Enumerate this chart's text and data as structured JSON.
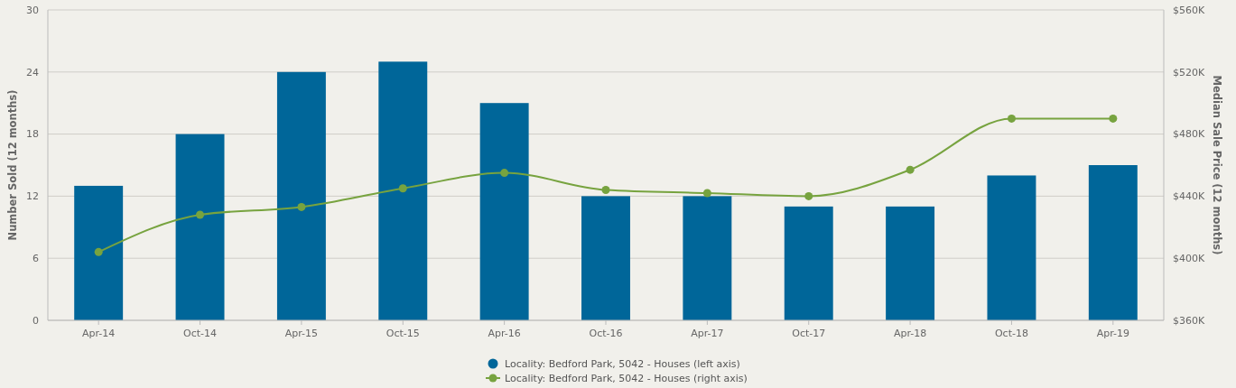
{
  "chart_data": {
    "type": "bar",
    "ylabel": "Number Sold (12 months)",
    "y2label": "Median Sale Price (12 months)",
    "categories": [
      "Apr-14",
      "Oct-14",
      "Apr-15",
      "Oct-15",
      "Apr-16",
      "Oct-16",
      "Apr-17",
      "Oct-17",
      "Apr-18",
      "Oct-18",
      "Apr-19"
    ],
    "series": [
      {
        "name": "Locality: Bedford Park, 5042 - Houses (left axis)",
        "color": "#006699",
        "values": [
          13,
          18,
          24,
          25,
          21,
          12,
          12,
          11,
          11,
          14,
          15
        ]
      },
      {
        "name": "Locality: Bedford Park, 5042 - Houses (right axis)",
        "type": "line",
        "axis": "y2",
        "color": "#77a33f",
        "marker": "circle",
        "values": [
          404,
          428,
          433,
          445,
          455,
          444,
          442,
          440,
          457,
          490,
          490
        ]
      }
    ],
    "ylim": [
      0,
      30
    ],
    "yticks": [
      0,
      6,
      12,
      18,
      24,
      30
    ],
    "y2lim": [
      360,
      560
    ],
    "y2ticks": [
      {
        "value": 360,
        "label": "$360K"
      },
      {
        "value": 400,
        "label": "$400K"
      },
      {
        "value": 440,
        "label": "$440K"
      },
      {
        "value": 480,
        "label": "$480K"
      },
      {
        "value": 520,
        "label": "$520K"
      },
      {
        "value": 560,
        "label": "$560K"
      }
    ],
    "grid": "y",
    "legend": "bottom"
  }
}
